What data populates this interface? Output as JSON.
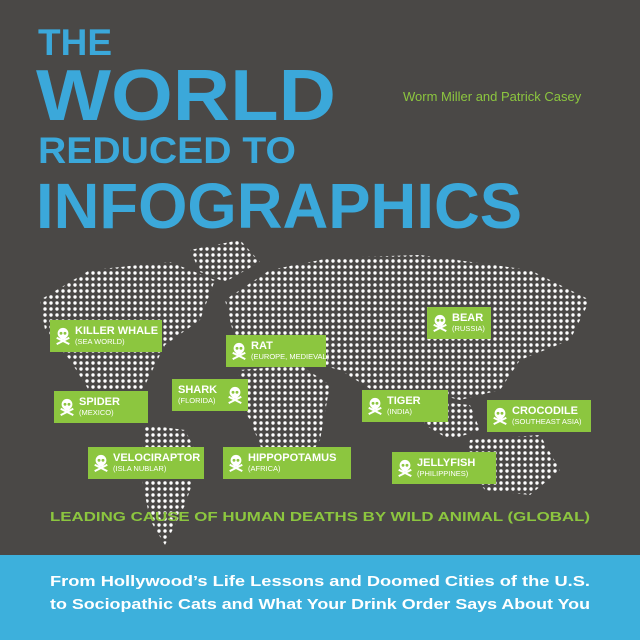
{
  "header": {
    "title": [
      "THE",
      "WORLD",
      "REDUCED TO",
      "INFOGRAPHICS"
    ],
    "authors": "Worm Miller and Patrick Casey"
  },
  "map": {
    "callouts": [
      {
        "name": "KILLER WHALE",
        "region": "(SEA WORLD)"
      },
      {
        "name": "RAT",
        "region": "(EUROPE, MEDIEVAL)"
      },
      {
        "name": "BEAR",
        "region": "(RUSSIA)"
      },
      {
        "name": "SPIDER",
        "region": "(MEXICO)"
      },
      {
        "name": "SHARK",
        "region": "(FLORIDA)"
      },
      {
        "name": "TIGER",
        "region": "(INDIA)"
      },
      {
        "name": "CROCODILE",
        "region": "(SOUTHEAST ASIA)"
      },
      {
        "name": "VELOCIRAPTOR",
        "region": "(ISLA NUBLAR)"
      },
      {
        "name": "HIPPOPOTAMUS",
        "region": "(AFRICA)"
      },
      {
        "name": "JELLYFISH",
        "region": "(PHILIPPINES)"
      }
    ],
    "caption": "LEADING CAUSE OF HUMAN DEATHS BY WILD ANIMAL (GLOBAL)"
  },
  "footer": {
    "subtitle": [
      "From Hollywood’s Life Lessons and Doomed Cities of the U.S.",
      "to Sociopathic Cats and What Your Drink Order Says About You"
    ]
  }
}
